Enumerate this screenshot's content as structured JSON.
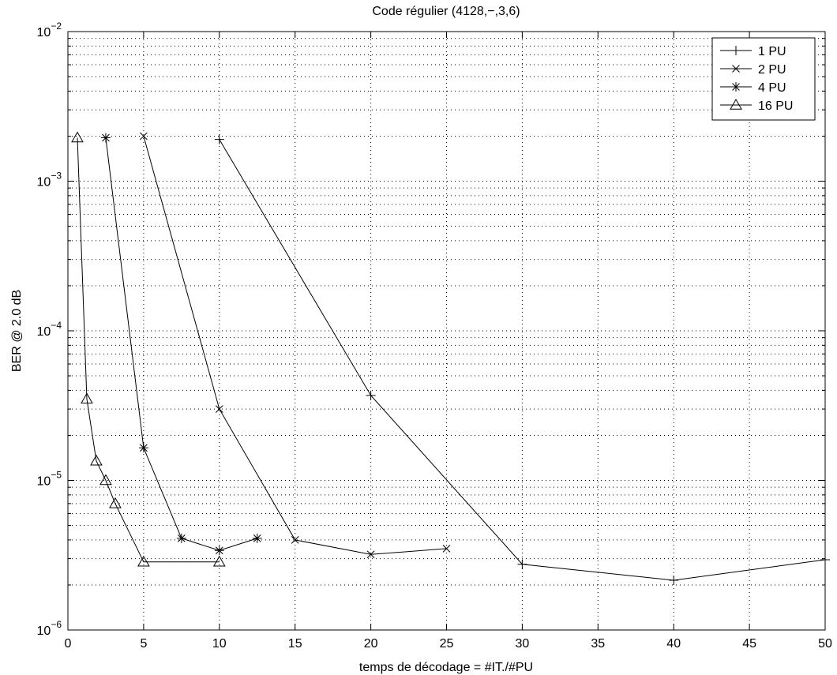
{
  "chart_data": {
    "type": "line",
    "title": "Code régulier (4128,−,3,6)",
    "xlabel": "temps de décodage = #IT./#PU",
    "ylabel": "BER @ 2.0 dB",
    "xlim": [
      0,
      50
    ],
    "ylim": [
      1e-06,
      0.01
    ],
    "yscale": "log",
    "grid": true,
    "legend_position": "top-right",
    "x_ticks": [
      "0",
      "5",
      "10",
      "15",
      "20",
      "25",
      "30",
      "35",
      "40",
      "45",
      "50"
    ],
    "y_ticks": [
      {
        "base": "10",
        "exp": "−6",
        "value": 1e-06
      },
      {
        "base": "10",
        "exp": "−5",
        "value": 1e-05
      },
      {
        "base": "10",
        "exp": "−4",
        "value": 0.0001
      },
      {
        "base": "10",
        "exp": "−3",
        "value": 0.001
      },
      {
        "base": "10",
        "exp": "−2",
        "value": 0.01
      }
    ],
    "series": [
      {
        "name": "1 PU",
        "marker": "plus",
        "x": [
          10,
          20,
          30,
          40,
          50
        ],
        "y": [
          0.0019,
          3.7e-05,
          2.75e-06,
          2.15e-06,
          2.95e-06
        ]
      },
      {
        "name": "2 PU",
        "marker": "x",
        "x": [
          5,
          10,
          15,
          20,
          25
        ],
        "y": [
          0.002,
          3e-05,
          4e-06,
          3.2e-06,
          3.5e-06
        ]
      },
      {
        "name": "4 PU",
        "marker": "star",
        "x": [
          2.5,
          5,
          7.5,
          10,
          12.5
        ],
        "y": [
          0.00195,
          1.65e-05,
          4.1e-06,
          3.4e-06,
          4.1e-06
        ]
      },
      {
        "name": "16 PU",
        "marker": "triangle",
        "x": [
          0.625,
          1.25,
          1.875,
          2.5,
          3.125,
          5,
          10
        ],
        "y": [
          0.00195,
          3.5e-05,
          1.35e-05,
          1e-05,
          7e-06,
          2.85e-06,
          2.85e-06
        ]
      }
    ]
  }
}
